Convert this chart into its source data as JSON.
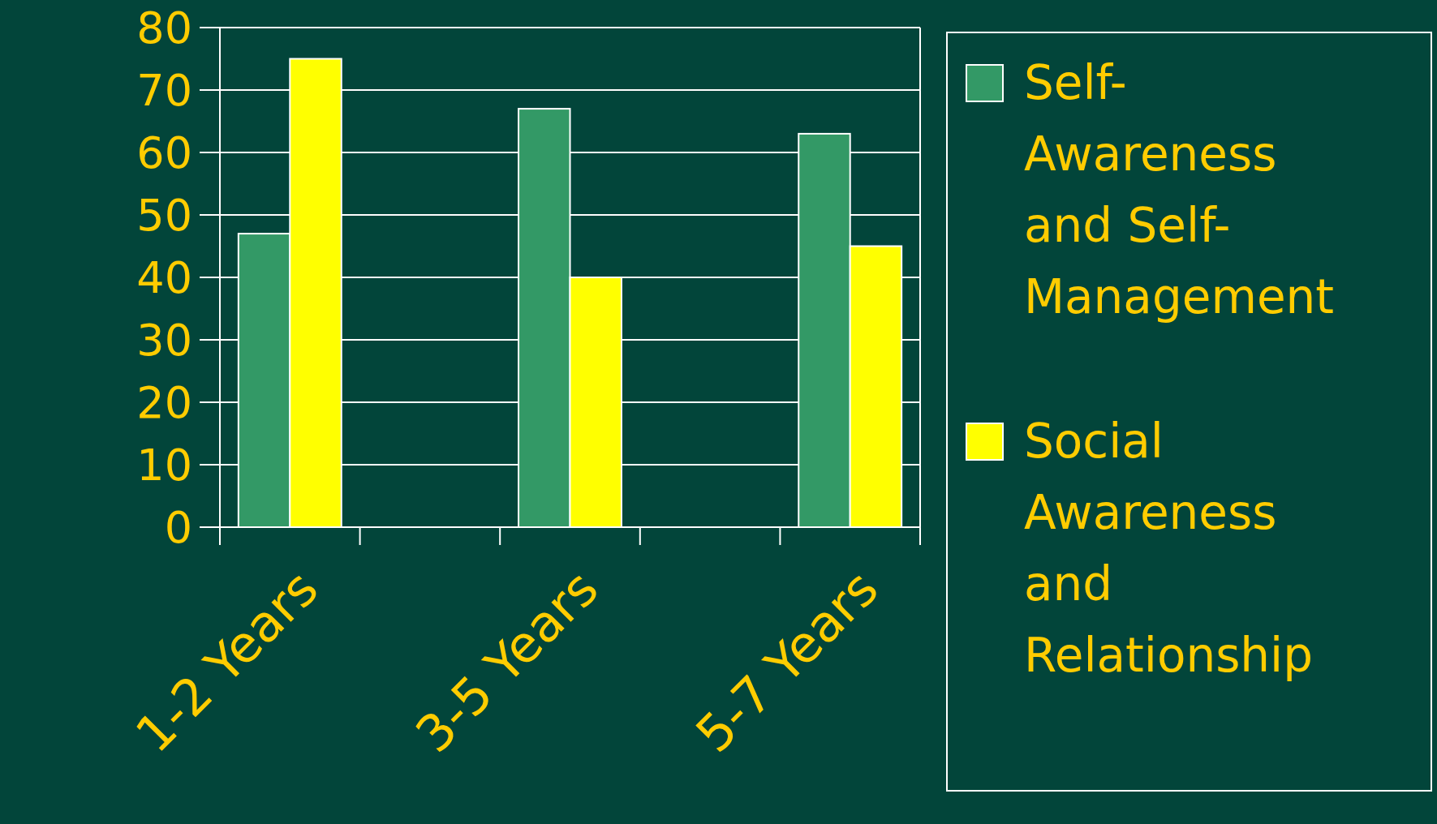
{
  "chart_data": {
    "type": "bar",
    "categories": [
      "1-2 Years",
      null,
      "3-5 Years",
      null,
      "5-7 Years"
    ],
    "series": [
      {
        "name": "Self-Awareness and Self-Management",
        "color": "#339966",
        "values": [
          47,
          null,
          67,
          null,
          63
        ]
      },
      {
        "name": "Social Awareness and Relationship",
        "color": "#ffff00",
        "values": [
          75,
          null,
          40,
          null,
          45
        ]
      }
    ],
    "ylim": [
      0,
      80
    ],
    "yticks": [
      0,
      10,
      20,
      30,
      40,
      50,
      60,
      70,
      80
    ],
    "grid": "y",
    "legend": "right"
  }
}
